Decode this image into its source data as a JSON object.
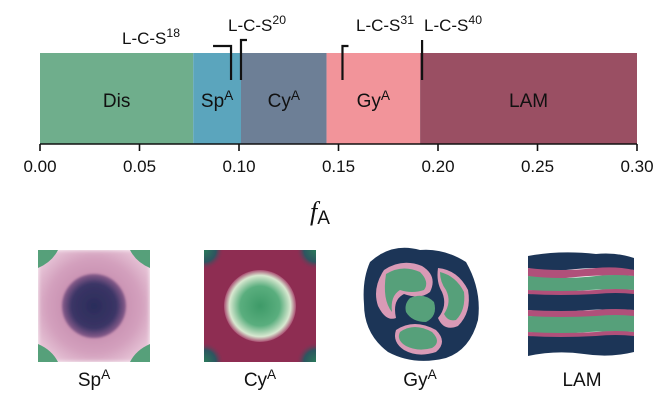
{
  "axis": {
    "min": 0.0,
    "max": 0.3,
    "ticks": [
      "0.00",
      "0.05",
      "0.10",
      "0.15",
      "0.20",
      "0.25",
      "0.30"
    ],
    "tick_values": [
      0.0,
      0.05,
      0.1,
      0.15,
      0.2,
      0.25,
      0.3
    ],
    "title_main": "f",
    "title_sub": "A"
  },
  "phases": [
    {
      "label": "Dis",
      "sup": "",
      "start": 0.0,
      "end": 0.077,
      "color": "#6fae8c"
    },
    {
      "label": "Sp",
      "sup": "A",
      "start": 0.077,
      "end": 0.101,
      "color": "#5ba5bd"
    },
    {
      "label": "Cy",
      "sup": "A",
      "start": 0.101,
      "end": 0.144,
      "color": "#6d7f96"
    },
    {
      "label": "Gy",
      "sup": "A",
      "start": 0.144,
      "end": 0.191,
      "color": "#f2949a"
    },
    {
      "label": "LAM",
      "sup": "",
      "start": 0.191,
      "end": 0.3,
      "color": "#9a4f63"
    }
  ],
  "markers": [
    {
      "label": "L-C-S",
      "sup": "18",
      "value": 0.096
    },
    {
      "label": "L-C-S",
      "sup": "20",
      "value": 0.101
    },
    {
      "label": "L-C-S",
      "sup": "31",
      "value": 0.152
    },
    {
      "label": "L-C-S",
      "sup": "40",
      "value": 0.192
    }
  ],
  "structures": [
    {
      "label": "Sp",
      "sup": "A",
      "icon": "sphere-structure-icon"
    },
    {
      "label": "Cy",
      "sup": "A",
      "icon": "cylinder-structure-icon"
    },
    {
      "label": "Gy",
      "sup": "A",
      "icon": "gyroid-structure-icon"
    },
    {
      "label": "LAM",
      "sup": "",
      "icon": "lamellar-structure-icon"
    }
  ],
  "colors": {
    "green": "#56a07a",
    "navy": "#1c3557",
    "pink": "#d99ab6",
    "magenta": "#a03a5e",
    "maroon": "#8a3350"
  }
}
